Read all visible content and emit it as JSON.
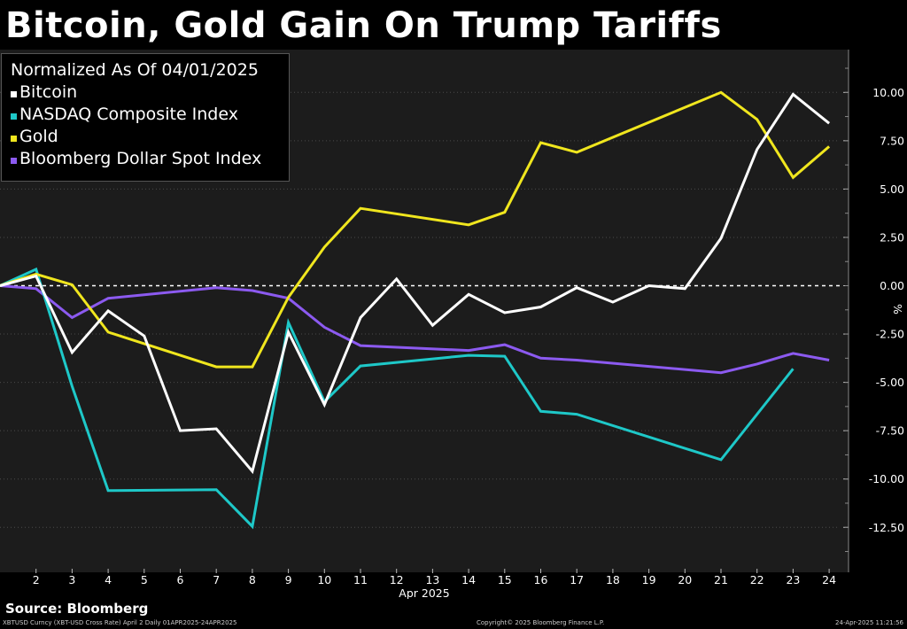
{
  "title": "Bitcoin, Gold Gain On Trump Tariffs",
  "legend": {
    "heading": "Normalized As Of 04/01/2025",
    "items": [
      {
        "label": "Bitcoin",
        "color": "#ffffff"
      },
      {
        "label": "NASDAQ Composite Index",
        "color": "#1ec8c8"
      },
      {
        "label": "Gold",
        "color": "#f0e61e"
      },
      {
        "label": "Bloomberg Dollar Spot Index",
        "color": "#8c5af0"
      }
    ]
  },
  "source": "Source: Bloomberg",
  "footer": {
    "left": "XBTUSD Curncy (XBT-USD Cross Rate) April 2  Daily 01APR2025-24APR2025",
    "center": "Copyright© 2025 Bloomberg Finance L.P.",
    "right": "24-Apr-2025 11:21:56"
  },
  "chart_data": {
    "type": "line",
    "x": [
      1,
      2,
      3,
      4,
      5,
      6,
      7,
      8,
      9,
      10,
      11,
      12,
      13,
      14,
      15,
      16,
      17,
      18,
      19,
      20,
      21,
      22,
      23,
      24
    ],
    "x_tick_labels": [
      "2",
      "3",
      "4",
      "5",
      "6",
      "7",
      "8",
      "9",
      "10",
      "11",
      "12",
      "13",
      "14",
      "15",
      "16",
      "17",
      "18",
      "19",
      "20",
      "21",
      "22",
      "23",
      "24"
    ],
    "xlabel": "Apr 2025",
    "ylabel": "%",
    "y_ticks": [
      10,
      7.5,
      5,
      2.5,
      0,
      -2.5,
      -5,
      -7.5,
      -10,
      -12.5
    ],
    "y_tick_labels": [
      "10.00",
      "7.50",
      "5.00",
      "2.50",
      "0.00",
      "-2.50",
      "-5.00",
      "-7.50",
      "-10.00",
      "-12.50"
    ],
    "ylim": [
      -14,
      12
    ],
    "xlim": [
      1,
      24.2
    ],
    "zero_line": "dashed",
    "grid": "horizontal dotted",
    "y_axis_side": "right",
    "series": [
      {
        "name": "Bitcoin",
        "color": "#ffffff",
        "x": [
          1,
          2,
          3,
          4,
          5,
          6,
          7,
          8,
          9,
          10,
          11,
          12,
          13,
          14,
          15,
          16,
          17,
          18,
          19,
          20,
          21,
          22,
          23,
          24
        ],
        "values": [
          0,
          0.5,
          -3.45,
          -1.3,
          -2.6,
          -7.5,
          -7.4,
          -9.6,
          -2.4,
          -6.15,
          -1.65,
          0.35,
          -2.05,
          -0.45,
          -1.4,
          -1.1,
          -0.1,
          -0.85,
          0,
          -0.15,
          2.45,
          7.05,
          9.9,
          8.4
        ]
      },
      {
        "name": "NASDAQ Composite Index",
        "color": "#1ec8c8",
        "x": [
          1,
          2,
          3,
          4,
          7,
          8,
          9,
          10,
          11,
          14,
          15,
          16,
          17,
          21,
          23
        ],
        "values": [
          0,
          0.85,
          -5.2,
          -10.6,
          -10.55,
          -12.45,
          -1.9,
          -6.0,
          -4.15,
          -3.6,
          -3.65,
          -6.5,
          -6.65,
          -9.0,
          -4.3
        ]
      },
      {
        "name": "Gold",
        "color": "#f0e61e",
        "x": [
          1,
          2,
          3,
          4,
          7,
          8,
          9,
          10,
          11,
          14,
          15,
          16,
          17,
          21,
          22,
          23,
          24
        ],
        "values": [
          0,
          0.6,
          0.05,
          -2.4,
          -4.2,
          -4.2,
          -0.6,
          2.0,
          4.0,
          3.15,
          3.8,
          7.4,
          6.9,
          10.0,
          8.6,
          5.6,
          7.2
        ]
      },
      {
        "name": "Bloomberg Dollar Spot Index",
        "color": "#8c5af0",
        "x": [
          1,
          2,
          3,
          4,
          7,
          8,
          9,
          10,
          11,
          14,
          15,
          16,
          17,
          21,
          22,
          23,
          24
        ],
        "values": [
          0,
          -0.15,
          -1.65,
          -0.65,
          -0.1,
          -0.25,
          -0.65,
          -2.15,
          -3.1,
          -3.35,
          -3.05,
          -3.75,
          -3.85,
          -4.5,
          -4.05,
          -3.5,
          -3.85
        ]
      }
    ]
  }
}
